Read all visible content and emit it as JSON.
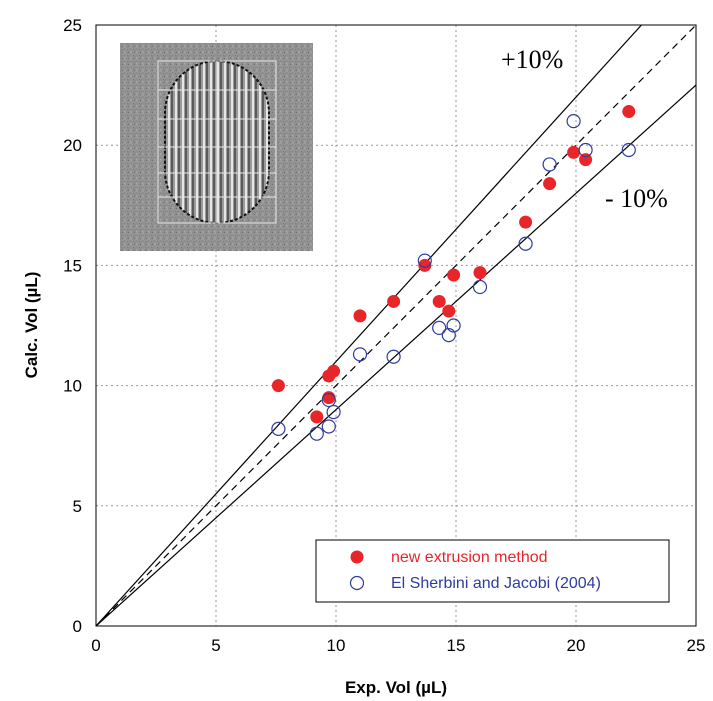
{
  "chart_data": {
    "type": "scatter",
    "xlabel": "Exp. Vol (µL)",
    "ylabel": "Calc. Vol (µL)",
    "xlim": [
      0,
      25
    ],
    "ylim": [
      0,
      25
    ],
    "x_ticks": [
      0,
      5,
      10,
      15,
      20,
      25
    ],
    "y_ticks": [
      0,
      5,
      10,
      15,
      20,
      25
    ],
    "grid": true,
    "legend_position": "bottom-right",
    "series": [
      {
        "name": "new extrusion method",
        "color": "#e8262a",
        "marker": "filled-circle",
        "points": [
          [
            7.6,
            10.0
          ],
          [
            9.2,
            8.7
          ],
          [
            9.7,
            10.4
          ],
          [
            9.7,
            9.5
          ],
          [
            9.9,
            10.6
          ],
          [
            11.0,
            12.9
          ],
          [
            12.4,
            13.5
          ],
          [
            13.7,
            15.0
          ],
          [
            14.3,
            13.5
          ],
          [
            14.7,
            13.1
          ],
          [
            14.9,
            14.6
          ],
          [
            16.0,
            14.7
          ],
          [
            17.9,
            16.8
          ],
          [
            18.9,
            18.4
          ],
          [
            19.9,
            19.7
          ],
          [
            20.4,
            19.4
          ],
          [
            22.2,
            21.4
          ]
        ]
      },
      {
        "name": "El Sherbini and Jacobi (2004)",
        "color": "#2e3c9e",
        "marker": "open-circle",
        "points": [
          [
            7.6,
            8.2
          ],
          [
            9.2,
            8.0
          ],
          [
            9.7,
            8.3
          ],
          [
            9.7,
            9.4
          ],
          [
            9.9,
            8.9
          ],
          [
            11.0,
            11.3
          ],
          [
            12.4,
            11.2
          ],
          [
            13.7,
            15.2
          ],
          [
            14.3,
            12.4
          ],
          [
            14.7,
            12.1
          ],
          [
            14.9,
            12.5
          ],
          [
            16.0,
            14.1
          ],
          [
            17.9,
            15.9
          ],
          [
            18.9,
            19.2
          ],
          [
            19.9,
            21.0
          ],
          [
            20.4,
            19.8
          ],
          [
            22.2,
            19.8
          ]
        ]
      }
    ],
    "reference_lines": [
      {
        "label": "+10%",
        "slope": 1.1,
        "style": "solid"
      },
      {
        "label": "1:1",
        "slope": 1.0,
        "style": "dashed"
      },
      {
        "label": "- 10%",
        "slope": 0.9,
        "style": "solid"
      }
    ],
    "annotations": [
      "+10%",
      "- 10%"
    ]
  }
}
